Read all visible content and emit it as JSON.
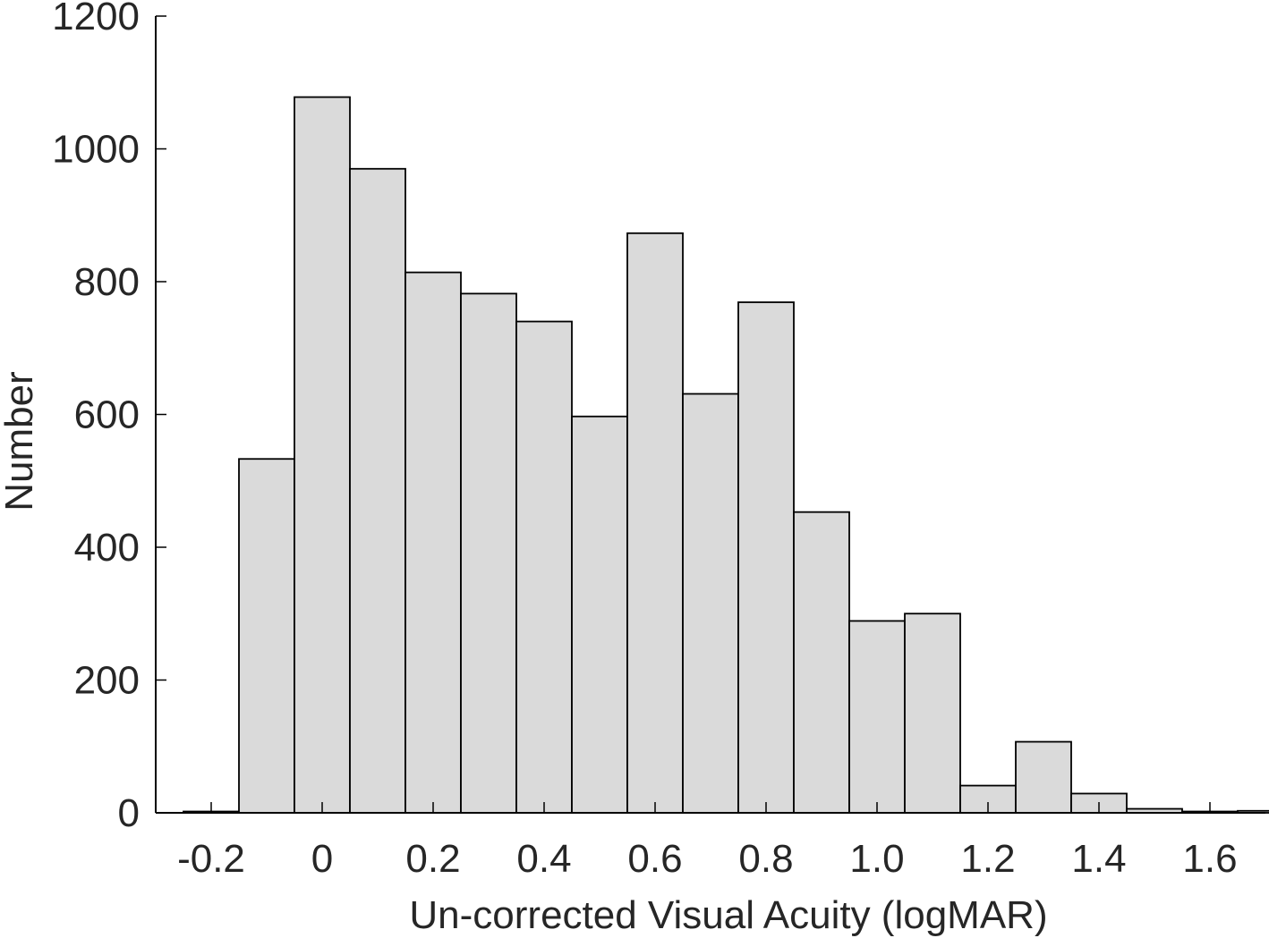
{
  "chart_data": {
    "type": "bar",
    "title": "",
    "xlabel": "Un-corrected Visual Acuity (logMAR)",
    "ylabel": "Number",
    "bin_width": 0.1,
    "bin_centers": [
      -0.2,
      -0.1,
      0.0,
      0.1,
      0.2,
      0.3,
      0.4,
      0.5,
      0.6,
      0.7,
      0.8,
      0.9,
      1.0,
      1.1,
      1.2,
      1.3,
      1.4,
      1.5,
      1.6,
      1.7
    ],
    "values": [
      2,
      533,
      1078,
      970,
      814,
      782,
      740,
      597,
      873,
      631,
      769,
      453,
      289,
      300,
      41,
      107,
      29,
      6,
      2,
      3
    ],
    "xlim": [
      -0.3,
      1.7
    ],
    "ylim": [
      0,
      1200
    ],
    "x_ticks": [
      -0.2,
      0,
      0.2,
      0.4,
      0.6,
      0.8,
      1.0,
      1.2,
      1.4,
      1.6
    ],
    "x_tick_labels": [
      "-0.2",
      "0",
      "0.2",
      "0.4",
      "0.6",
      "0.8",
      "1.0",
      "1.2",
      "1.4",
      "1.6"
    ],
    "y_ticks": [
      0,
      200,
      400,
      600,
      800,
      1000,
      1200
    ],
    "y_tick_labels": [
      "0",
      "200",
      "400",
      "600",
      "800",
      "1000",
      "1200"
    ],
    "grid": false,
    "bar_color": "#dadada",
    "edge_color": "#000000"
  }
}
